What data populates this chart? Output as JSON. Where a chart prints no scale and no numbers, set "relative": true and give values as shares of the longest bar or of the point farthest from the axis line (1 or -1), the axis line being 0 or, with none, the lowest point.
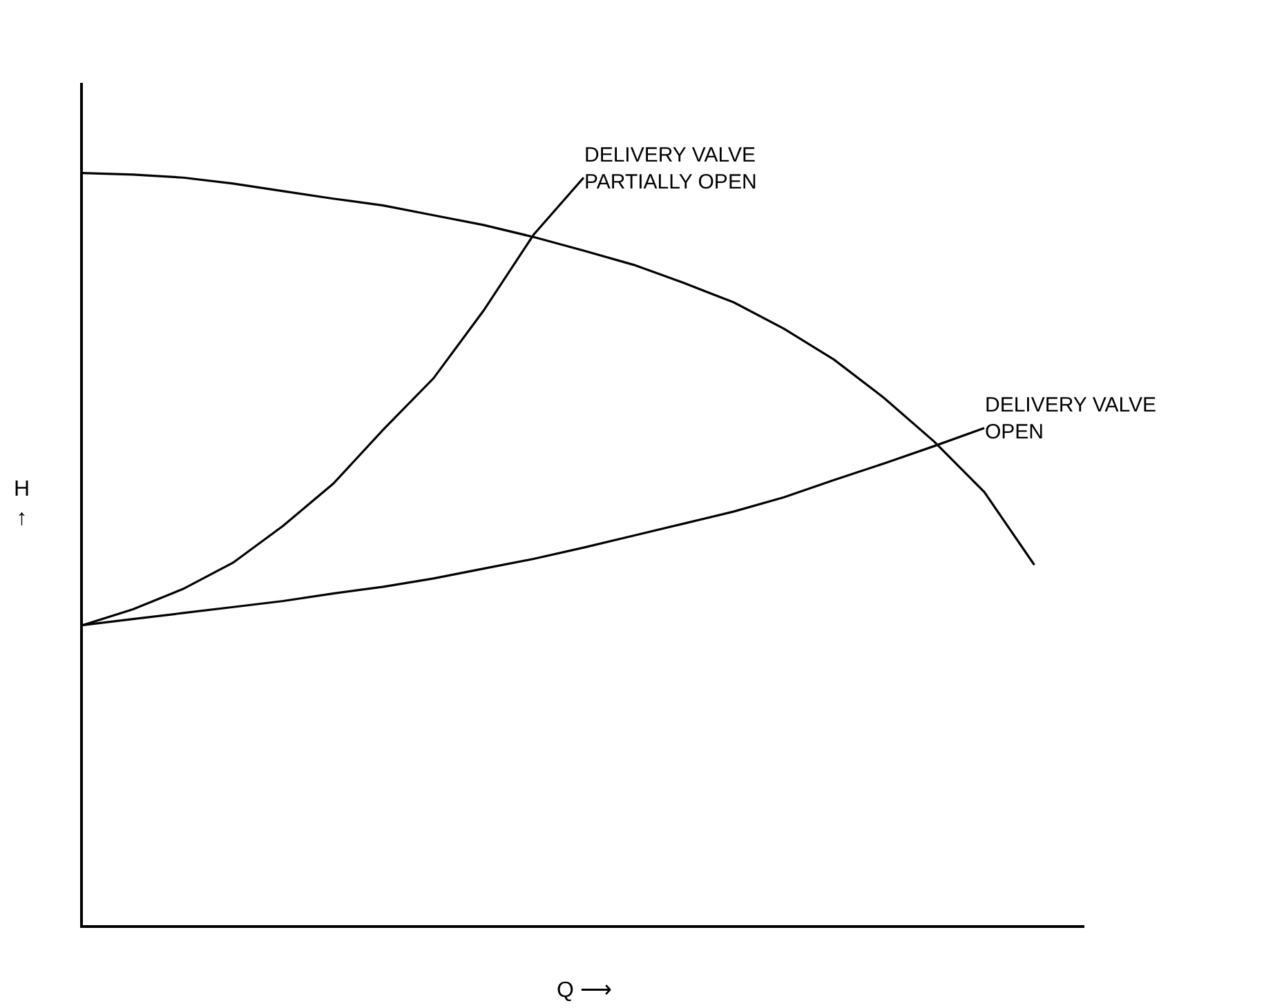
{
  "chart_data": {
    "type": "line",
    "relative": true,
    "xlabel": "Q ⟶",
    "ylabel": "H ↑",
    "categories": [
      null,
      null,
      null,
      null,
      null,
      null,
      null,
      null,
      null,
      null,
      null,
      null,
      null,
      null,
      null,
      null,
      null,
      null,
      null,
      null,
      null
    ],
    "legend": false,
    "marker": "none",
    "line_style": "solid",
    "series": [
      {
        "color": "#000000",
        "values": [
          1,
          0.998,
          0.994,
          0.986,
          0.976,
          0.966,
          0.957,
          0.944,
          0.931,
          0.915,
          0.897,
          0.878,
          0.854,
          0.828,
          0.793,
          0.752,
          0.701,
          0.643,
          0.576,
          0.479,
          null
        ]
      },
      {
        "name": "DELIVERY VALVE PARTIALLY OPEN",
        "color": "#000000",
        "values": [
          0.399,
          0.42,
          0.447,
          0.482,
          0.531,
          0.587,
          0.659,
          0.727,
          0.817,
          0.918,
          0.994,
          null,
          null,
          null,
          null,
          null,
          null,
          null,
          null,
          null,
          null
        ]
      },
      {
        "name": "DELIVERY VALVE OPEN",
        "color": "#000000",
        "values": [
          0.399,
          0.407,
          0.415,
          0.423,
          0.431,
          0.441,
          0.45,
          0.461,
          0.474,
          0.487,
          0.502,
          0.518,
          0.534,
          0.55,
          0.569,
          0.592,
          0.614,
          0.637,
          0.661,
          null,
          null
        ]
      }
    ]
  }
}
